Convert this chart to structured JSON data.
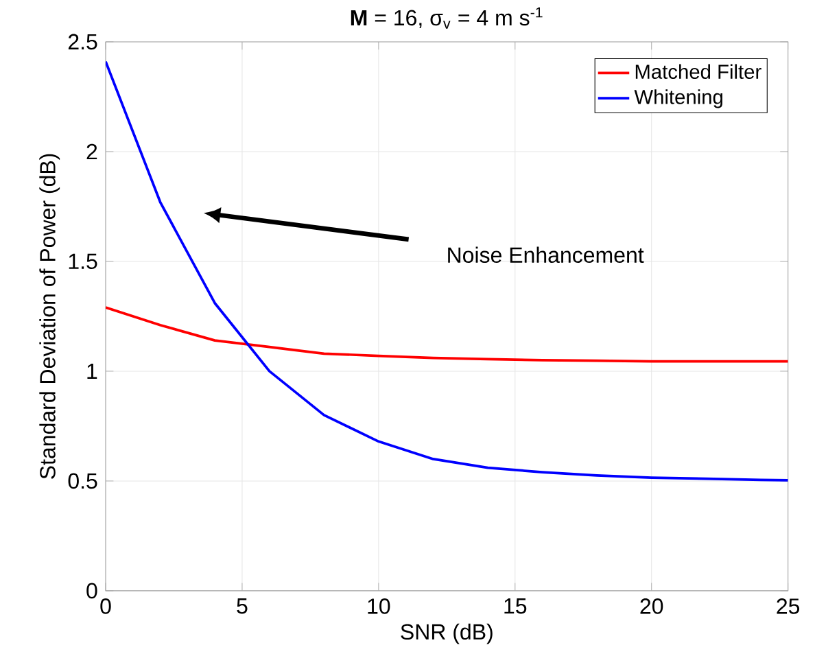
{
  "chart_data": {
    "type": "line",
    "title": "**M** = 16, σ$_{v}$ = 4 m s$^{-1}$",
    "xlabel": "SNR (dB)",
    "ylabel": "Standard Deviation of Power (dB)",
    "x": [
      0,
      2,
      4,
      6,
      8,
      10,
      12,
      14,
      16,
      18,
      20,
      22,
      24,
      25
    ],
    "series": [
      {
        "name": "Matched Filter",
        "color": "#ff0000",
        "values": [
          1.29,
          1.21,
          1.14,
          1.11,
          1.08,
          1.07,
          1.06,
          1.055,
          1.05,
          1.048,
          1.045,
          1.045,
          1.045,
          1.045
        ]
      },
      {
        "name": "Whitening",
        "color": "#0000ff",
        "values": [
          2.41,
          1.77,
          1.31,
          1.0,
          0.8,
          0.68,
          0.6,
          0.56,
          0.54,
          0.525,
          0.515,
          0.51,
          0.505,
          0.503
        ]
      }
    ],
    "xlim": [
      0,
      25
    ],
    "ylim": [
      0,
      2.5
    ],
    "xticks": [
      0,
      5,
      10,
      15,
      20,
      25
    ],
    "yticks": [
      0,
      0.5,
      1,
      1.5,
      2,
      2.5
    ],
    "grid": true,
    "legend": "top right",
    "line_style": "solid",
    "marker": "none",
    "annotations": [
      "Noise Enhancement"
    ]
  }
}
